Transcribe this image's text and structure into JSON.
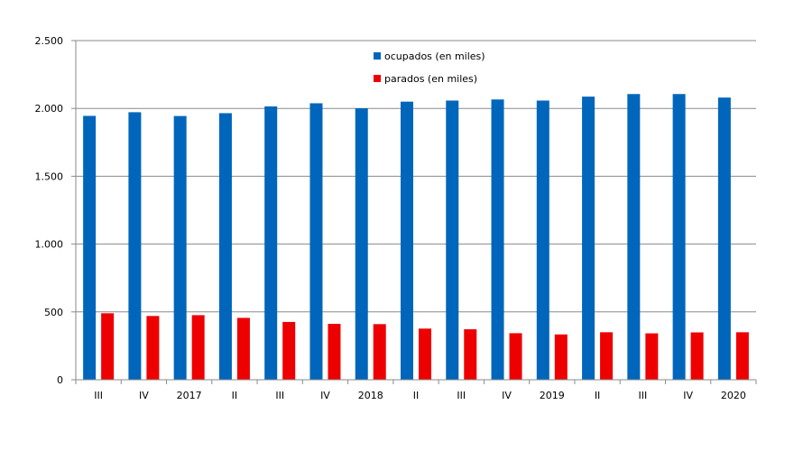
{
  "chart_data": {
    "type": "bar",
    "categories": [
      "III",
      "IV",
      "2017",
      "II",
      "III",
      "IV",
      "2018",
      "II",
      "III",
      "IV",
      "2019",
      "II",
      "III",
      "IV",
      "2020"
    ],
    "series": [
      {
        "name": "ocupados (en miles)",
        "color": "#0066BB",
        "values": [
          1945,
          1972,
          1944,
          1965,
          2015,
          2038,
          2001,
          2050,
          2058,
          2066,
          2058,
          2087,
          2106,
          2106,
          2080
        ]
      },
      {
        "name": "parados (en miles)",
        "color": "#EE0000",
        "values": [
          490,
          470,
          476,
          456,
          426,
          412,
          410,
          377,
          372,
          343,
          334,
          350,
          342,
          349,
          350
        ]
      }
    ],
    "title": "",
    "xlabel": "",
    "ylabel": "",
    "ylim": [
      0,
      2500
    ],
    "y_ticks": [
      0,
      500,
      1000,
      1500,
      2000,
      2500
    ],
    "y_tick_labels": [
      "0",
      "500",
      "1.000",
      "1.500",
      "2.000",
      "2.500"
    ],
    "grid": true,
    "legend_position": "top-center"
  }
}
